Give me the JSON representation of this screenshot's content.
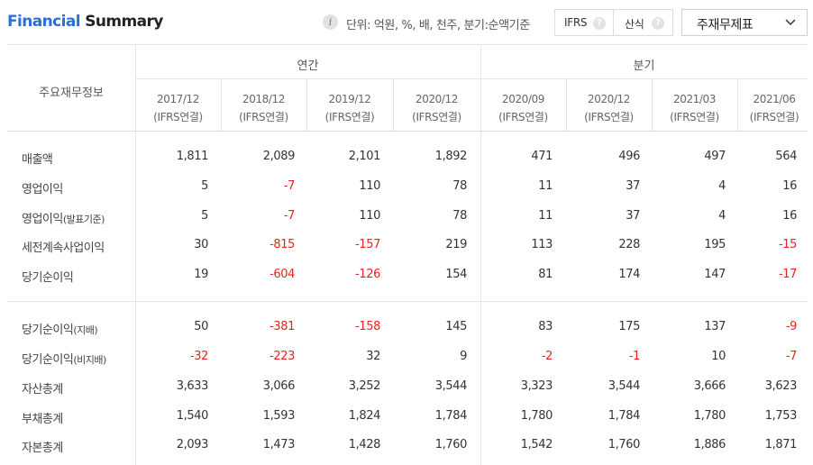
{
  "header": {
    "title_part1": "Financial",
    "title_part2": " Summary",
    "unit_text": "단위: 억원, %, 배, 천주, 분기:순액기준",
    "ifrs_label": "IFRS",
    "calc_label": "산식",
    "statement_selector": "주재무제표",
    "help_glyph": "?"
  },
  "table": {
    "row_header_label": "주요재무정보",
    "groups": [
      "연간",
      "분기"
    ],
    "periods": [
      {
        "date": "2017/12",
        "basis": "(IFRS연결)"
      },
      {
        "date": "2018/12",
        "basis": "(IFRS연결)"
      },
      {
        "date": "2019/12",
        "basis": "(IFRS연결)"
      },
      {
        "date": "2020/12",
        "basis": "(IFRS연결)"
      },
      {
        "date": "2020/09",
        "basis": "(IFRS연결)"
      },
      {
        "date": "2020/12",
        "basis": "(IFRS연결)"
      },
      {
        "date": "2021/03",
        "basis": "(IFRS연결)"
      },
      {
        "date": "2021/06",
        "basis": "(IFRS연결)"
      }
    ],
    "rows": [
      {
        "label": "매출액",
        "sub": "",
        "values": [
          "1,811",
          "2,089",
          "2,101",
          "1,892",
          "471",
          "496",
          "497",
          "564"
        ]
      },
      {
        "label": "영업이익",
        "sub": "",
        "values": [
          "5",
          "-7",
          "110",
          "78",
          "11",
          "37",
          "4",
          "16"
        ]
      },
      {
        "label": "영업이익",
        "sub": "(발표기준)",
        "values": [
          "5",
          "-7",
          "110",
          "78",
          "11",
          "37",
          "4",
          "16"
        ]
      },
      {
        "label": "세전계속사업이익",
        "sub": "",
        "values": [
          "30",
          "-815",
          "-157",
          "219",
          "113",
          "228",
          "195",
          "-15"
        ]
      },
      {
        "label": "당기순이익",
        "sub": "",
        "values": [
          "19",
          "-604",
          "-126",
          "154",
          "81",
          "174",
          "147",
          "-17"
        ]
      },
      {
        "label": "당기순이익",
        "sub": "(지배)",
        "values": [
          "50",
          "-381",
          "-158",
          "145",
          "83",
          "175",
          "137",
          "-9"
        ]
      },
      {
        "label": "당기순이익",
        "sub": "(비지배)",
        "values": [
          "-32",
          "-223",
          "32",
          "9",
          "-2",
          "-1",
          "10",
          "-7"
        ]
      },
      {
        "label": "자산총계",
        "sub": "",
        "values": [
          "3,633",
          "3,066",
          "3,252",
          "3,544",
          "3,323",
          "3,544",
          "3,666",
          "3,623"
        ]
      },
      {
        "label": "부채총계",
        "sub": "",
        "values": [
          "1,540",
          "1,593",
          "1,824",
          "1,784",
          "1,780",
          "1,784",
          "1,780",
          "1,753"
        ]
      },
      {
        "label": "자본총계",
        "sub": "",
        "values": [
          "2,093",
          "1,473",
          "1,428",
          "1,760",
          "1,542",
          "1,760",
          "1,886",
          "1,871"
        ]
      }
    ]
  },
  "colors": {
    "accent": "#2d6fd8",
    "negative": "#e52222",
    "border": "#e5e5e5"
  },
  "icons": [
    "info-icon",
    "help-icon",
    "chevron-down-icon"
  ]
}
